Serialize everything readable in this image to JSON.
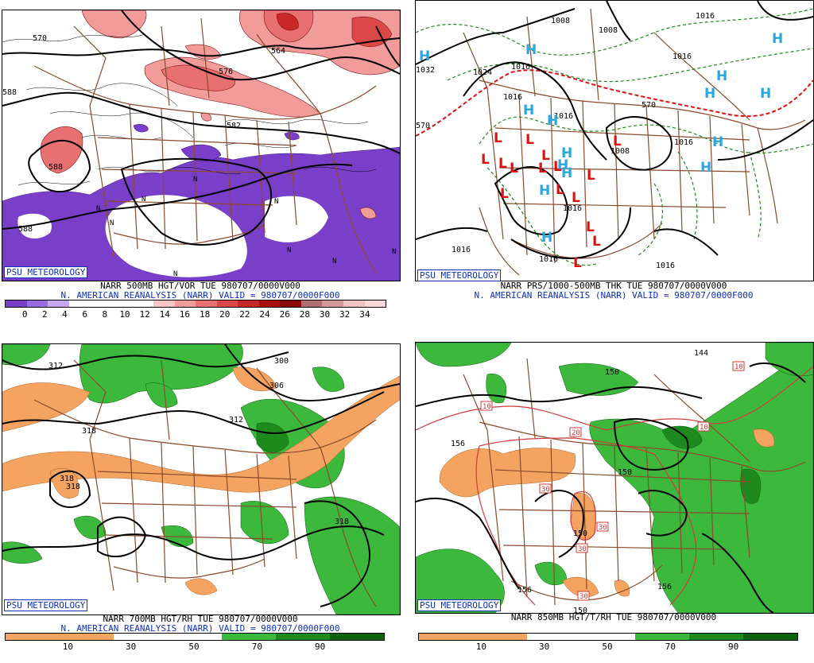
{
  "logo": "PSU METEOROLOGY",
  "colors": {
    "vort": [
      "#7a3fc9",
      "#9b6be0",
      "#c6a8ef",
      "#ffffff",
      "#ffffff",
      "#ffffff",
      "#ffffff",
      "#f7c7c7",
      "#f19b9b",
      "#e87070",
      "#db4848",
      "#c92828",
      "#a80e0e",
      "#8a0a0a",
      "#b07070",
      "#d49a9a",
      "#efc3c3",
      "#f9d7da"
    ],
    "rh": [
      "#f4a460",
      "#f4a460",
      "#ffffff",
      "#ffffff",
      "#3cb83c",
      "#1e8a1e",
      "#0e640e"
    ],
    "high": "#29a8e0",
    "low": "#e01010",
    "border": "#8b4a2a"
  },
  "panels": [
    {
      "id": "500mb",
      "title": "NARR 500MB HGT/VOR TUE 980707/0000V000",
      "subtitle": "N. AMERICAN REANALYSIS (NARR) VALID = 980707/0000F000",
      "colorbar_labels": [
        "0",
        "2",
        "4",
        "6",
        "8",
        "10",
        "12",
        "14",
        "16",
        "18",
        "20",
        "22",
        "24",
        "26",
        "28",
        "30",
        "32",
        "34"
      ],
      "contour_labels": [
        "570",
        "564",
        "576",
        "582",
        "588",
        "588",
        "588"
      ],
      "n_labels": [
        "N",
        "N",
        "N",
        "N",
        "N",
        "N",
        "N",
        "N",
        "N"
      ]
    },
    {
      "id": "sfc",
      "title": "NARR PRS/1000-500MB THK TUE 980707/0000V000",
      "subtitle": "N. AMERICAN REANALYSIS (NARR) VALID = 980707/0000F000",
      "isobar_labels": [
        "1008",
        "1008",
        "1008",
        "1016",
        "1016",
        "1016",
        "1016",
        "1016",
        "1016",
        "1016",
        "1016",
        "1016",
        "1032",
        "1024",
        "1016"
      ],
      "thickness_labels": [
        "570",
        "570"
      ],
      "highs": [
        "H",
        "H",
        "H",
        "H",
        "H",
        "H",
        "H",
        "H",
        "H",
        "H",
        "H",
        "H",
        "H",
        "H",
        "H"
      ],
      "lows": [
        "L",
        "L",
        "L",
        "L",
        "L",
        "L",
        "L",
        "L",
        "L",
        "L",
        "L",
        "L",
        "L",
        "L",
        "L",
        "L"
      ]
    },
    {
      "id": "700mb",
      "title": "NARR 700MB HGT/RH TUE 980707/0000V000",
      "subtitle": "N. AMERICAN REANALYSIS (NARR) VALID = 980707/0000F000",
      "colorbar_labels": [
        "10",
        "30",
        "50",
        "70",
        "90"
      ],
      "contour_labels": [
        "312",
        "300",
        "306",
        "312",
        "318",
        "318",
        "318",
        "318"
      ]
    },
    {
      "id": "850mb",
      "title": "NARR 850MB HGT/T/RH TUE 980707/0000V000",
      "colorbar_labels": [
        "10",
        "30",
        "50",
        "70",
        "90"
      ],
      "contour_labels": [
        "144",
        "150",
        "156",
        "150",
        "150",
        "156",
        "156",
        "150"
      ],
      "temp_box_labels": [
        "10",
        "10",
        "20",
        "10",
        "30",
        "30",
        "30",
        "30"
      ]
    }
  ]
}
